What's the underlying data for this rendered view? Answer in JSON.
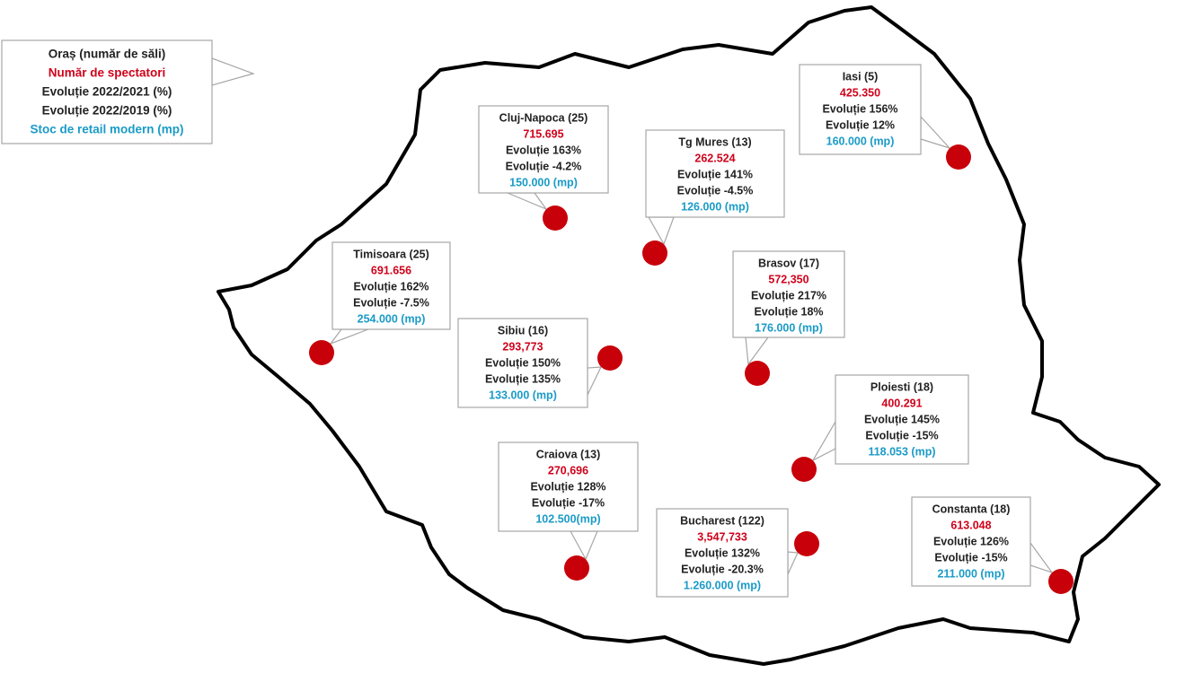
{
  "legend": {
    "lines": [
      "Oraș (număr de săli)",
      "Număr de spectatori",
      "Evoluție 2022/2021 (%)",
      "Evoluție 2022/2019 (%)",
      "Stoc de retail modern (mp)"
    ]
  },
  "cities": [
    {
      "name": "Cluj-Napoca (25)",
      "spectators": "715.695",
      "evo2021": "Evoluție 163%",
      "evo2019": "Evoluție -4.2%",
      "retail": "150.000 (mp)"
    },
    {
      "name": "Tg Mures (13)",
      "spectators": "262.524",
      "evo2021": "Evoluție 141%",
      "evo2019": "Evoluție -4.5%",
      "retail": "126.000 (mp)"
    },
    {
      "name": "Iasi (5)",
      "spectators": "425.350",
      "evo2021": "Evoluție 156%",
      "evo2019": "Evoluție 12%",
      "retail": "160.000 (mp)"
    },
    {
      "name": "Timisoara (25)",
      "spectators": "691.656",
      "evo2021": "Evoluție 162%",
      "evo2019": "Evoluție -7.5%",
      "retail": "254.000 (mp)"
    },
    {
      "name": "Brasov (17)",
      "spectators": "572,350",
      "evo2021": "Evoluție 217%",
      "evo2019": "Evoluție 18%",
      "retail": "176.000 (mp)"
    },
    {
      "name": "Sibiu (16)",
      "spectators": "293,773",
      "evo2021": "Evoluție 150%",
      "evo2019": "Evoluție 135%",
      "retail": "133.000 (mp)"
    },
    {
      "name": "Ploiesti (18)",
      "spectators": "400.291",
      "evo2021": "Evoluție 145%",
      "evo2019": "Evoluție -15%",
      "retail": "118.053 (mp)"
    },
    {
      "name": "Craiova (13)",
      "spectators": "270,696",
      "evo2021": "Evoluție 128%",
      "evo2019": "Evoluție -17%",
      "retail": "102.500(mp)"
    },
    {
      "name": "Bucharest (122)",
      "spectators": "3,547,733",
      "evo2021": "Evoluție 132%",
      "evo2019": "Evoluție -20.3%",
      "retail": "1.260.000 (mp)"
    },
    {
      "name": "Constanta (18)",
      "spectators": "613.048",
      "evo2021": "Evoluție 126%",
      "evo2019": "Evoluție -15%",
      "retail": "211.000 (mp)"
    }
  ]
}
